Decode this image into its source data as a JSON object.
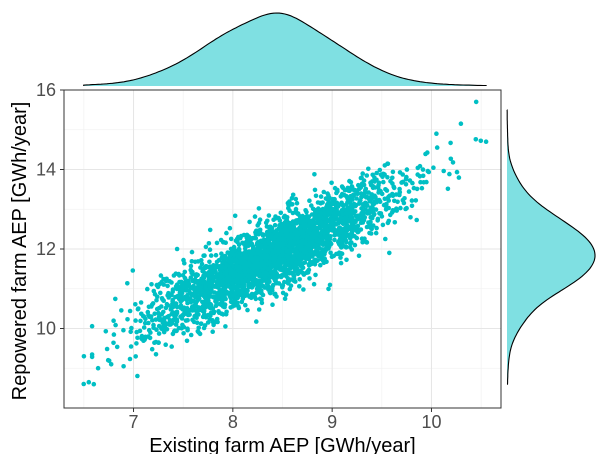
{
  "chart_data": {
    "type": "scatter",
    "xlabel": "Existing farm AEP [GWh/year]",
    "ylabel": "Repowered farm AEP [GWh/year]",
    "xlim": [
      6.3,
      10.7
    ],
    "ylim": [
      8.0,
      16.0
    ],
    "x_ticks": [
      7,
      8,
      9,
      10
    ],
    "y_ticks": [
      10,
      12,
      14,
      16
    ],
    "grid": true,
    "point_color": "#00BFC4",
    "density_fill": "#7FE0E2",
    "density_stroke": "#000000",
    "marginal_x_density": true,
    "marginal_y_density": true,
    "n_points": 3000,
    "x_mean": 8.4,
    "x_sd": 0.6,
    "y_mean": 11.85,
    "y_sd": 0.88,
    "correlation": 0.87,
    "notable_points": [
      {
        "x": 10.45,
        "y": 15.7
      },
      {
        "x": 10.55,
        "y": 14.7
      },
      {
        "x": 10.05,
        "y": 14.9
      },
      {
        "x": 6.55,
        "y": 8.65
      },
      {
        "x": 6.6,
        "y": 8.6
      },
      {
        "x": 6.9,
        "y": 9.05
      },
      {
        "x": 6.5,
        "y": 9.3
      }
    ]
  }
}
